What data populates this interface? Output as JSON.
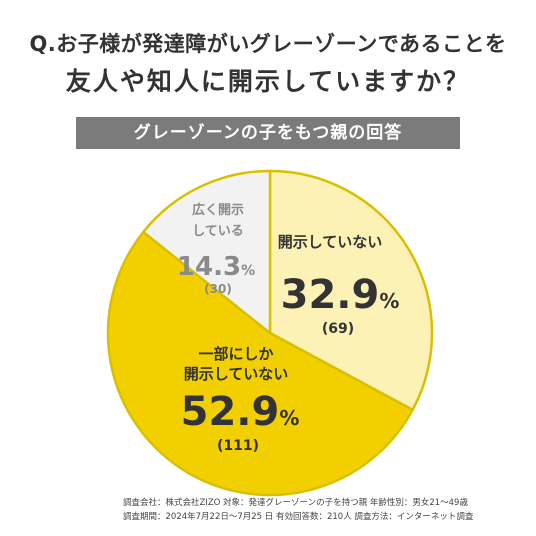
{
  "heading": {
    "line1": "Q.お子様が発達障がいグレーゾーンであることを",
    "line2": "友人や知人に開示していますか？"
  },
  "banner": "グレーゾーンの子をもつ親の回答",
  "chart_data": {
    "type": "pie",
    "title": "グレーゾーンの子をもつ親の回答",
    "slices": [
      {
        "label": "開示していない",
        "value": 32.9,
        "count": "(69)",
        "color": "#fdf2b6"
      },
      {
        "label": "一部にしか開示していない",
        "label_lines": [
          "一部にしか",
          "開示していない"
        ],
        "value": 52.9,
        "count": "(111)",
        "color": "#f2d000"
      },
      {
        "label": "広く開示している",
        "label_lines": [
          "広く開示",
          "している"
        ],
        "value": 14.3,
        "count": "(30)",
        "color": "#f2f2f2"
      }
    ],
    "start": "12 o'clock",
    "direction": "clockwise",
    "edge_color": "#d8c000",
    "unit": "%"
  },
  "footer": {
    "line1": "調査会社：株式会社ZIZO 対象：発達グレーゾーンの子を持つ親 年齢性別：男女21〜49歳",
    "line2": "調査期間：2024年7月22日〜7月25 日 有効回答数：210人 調査方法：インターネット調査"
  }
}
